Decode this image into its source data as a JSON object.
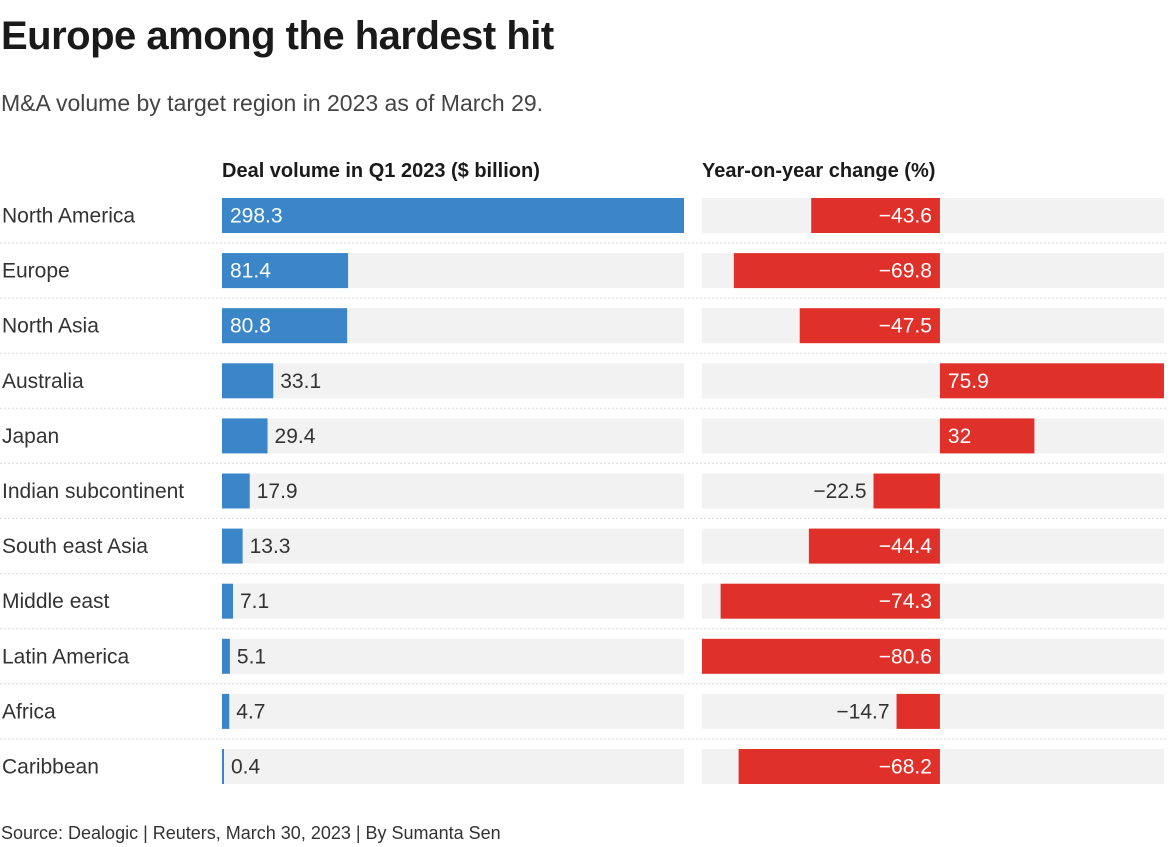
{
  "title": "Europe among the hardest hit",
  "subtitle": "M&A volume by target region in 2023 as of March 29.",
  "source": "Source: Dealogic | Reuters, March 30, 2023 | By Sumanta Sen",
  "colors": {
    "volume_bar": "#3a86c8",
    "change_bar": "#e0302a",
    "track": "#f2f2f2",
    "divider": "#d9d9d9"
  },
  "chart_data": [
    {
      "type": "bar",
      "orientation": "horizontal",
      "title": "Deal volume in Q1 2023 ($ billion)",
      "categories": [
        "North America",
        "Europe",
        "North Asia",
        "Australia",
        "Japan",
        "Indian subcontinent",
        "South east Asia",
        "Middle east",
        "Latin America",
        "Africa",
        "Caribbean"
      ],
      "values": [
        298.3,
        81.4,
        80.8,
        33.1,
        29.4,
        17.9,
        13.3,
        7.1,
        5.1,
        4.7,
        0.4
      ],
      "labels": [
        "298.3",
        "81.4",
        "80.8",
        "33.1",
        "29.4",
        "17.9",
        "13.3",
        "7.1",
        "5.1",
        "4.7",
        "0.4"
      ],
      "xlim": [
        0,
        298.3
      ],
      "grid": false
    },
    {
      "type": "bar",
      "orientation": "horizontal",
      "title": "Year-on-year change (%)",
      "categories": [
        "North America",
        "Europe",
        "North Asia",
        "Australia",
        "Japan",
        "Indian subcontinent",
        "South east Asia",
        "Middle east",
        "Latin America",
        "Africa",
        "Caribbean"
      ],
      "values": [
        -43.6,
        -69.8,
        -47.5,
        75.9,
        32,
        -22.5,
        -44.4,
        -74.3,
        -80.6,
        -14.7,
        -68.2
      ],
      "labels": [
        "−43.6",
        "−69.8",
        "−47.5",
        "75.9",
        "32",
        "−22.5",
        "−44.4",
        "−74.3",
        "−80.6",
        "−14.7",
        "−68.2"
      ],
      "xlim": [
        -80.6,
        75.9
      ],
      "grid": false
    }
  ]
}
